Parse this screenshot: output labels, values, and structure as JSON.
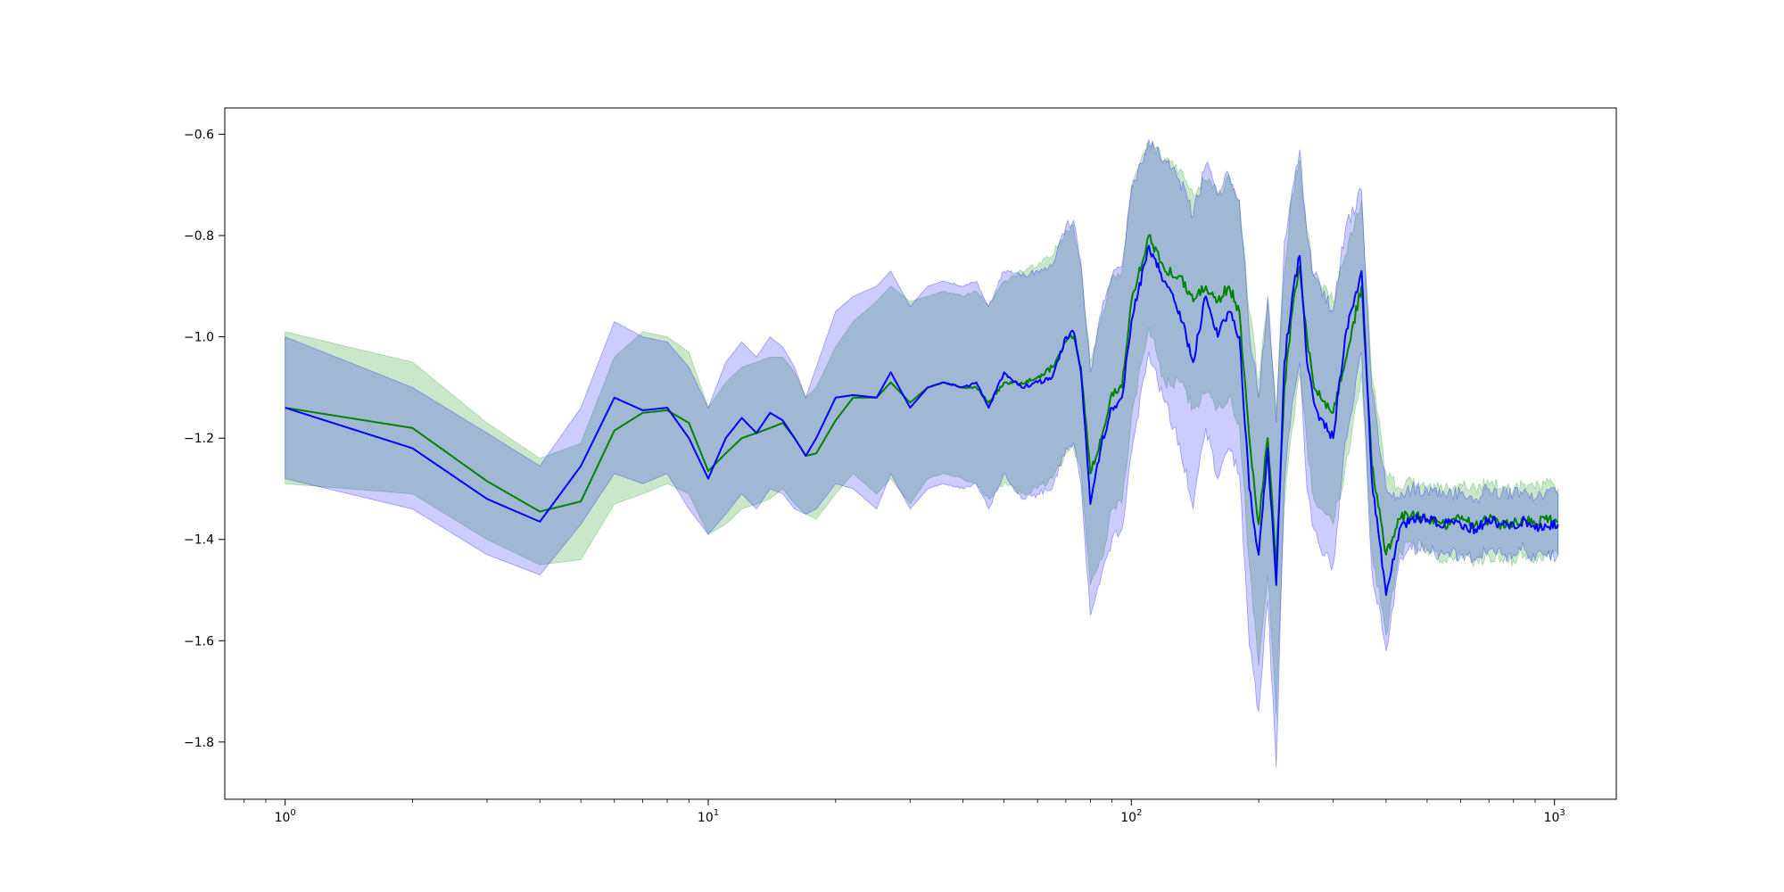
{
  "chart_data": {
    "type": "line",
    "title": "",
    "xlabel": "",
    "ylabel": "",
    "x_scale": "log",
    "xlim": [
      0.72,
      1400
    ],
    "ylim": [
      -1.913,
      -0.548
    ],
    "grid": false,
    "legend": "none",
    "x_ticks": [
      {
        "value": 1,
        "base": "10",
        "exp": "0"
      },
      {
        "value": 10,
        "base": "10",
        "exp": "1"
      },
      {
        "value": 100,
        "base": "10",
        "exp": "2"
      },
      {
        "value": 1000,
        "base": "10",
        "exp": "3"
      }
    ],
    "y_ticks": [
      {
        "value": -0.6,
        "label": "−0.6"
      },
      {
        "value": -0.8,
        "label": "−0.8"
      },
      {
        "value": -1.0,
        "label": "−1.0"
      },
      {
        "value": -1.2,
        "label": "−1.2"
      },
      {
        "value": -1.4,
        "label": "−1.4"
      },
      {
        "value": -1.6,
        "label": "−1.6"
      },
      {
        "value": -1.8,
        "label": "−1.8"
      }
    ],
    "series": [
      {
        "color": "#008000",
        "band_color": "#2ca02c",
        "band_opacity": 0.25,
        "x": [
          1,
          2,
          3,
          4,
          5,
          6,
          7,
          8,
          9,
          10,
          11,
          12,
          13,
          14,
          15,
          16,
          17,
          18,
          20,
          22,
          25,
          27,
          30,
          33,
          36,
          40,
          43,
          46,
          50,
          55,
          60,
          65,
          70,
          73,
          76,
          80,
          85,
          90,
          95,
          100,
          110,
          120,
          130,
          140,
          150,
          160,
          170,
          180,
          190,
          200,
          210,
          220,
          230,
          240,
          250,
          260,
          270,
          280,
          300,
          320,
          350,
          370,
          400,
          430,
          460,
          500,
          550,
          600,
          650,
          700,
          750,
          800,
          850,
          900,
          950,
          1020
        ],
        "y": [
          -1.14,
          -1.18,
          -1.285,
          -1.345,
          -1.325,
          -1.185,
          -1.15,
          -1.145,
          -1.17,
          -1.265,
          -1.23,
          -1.2,
          -1.19,
          -1.18,
          -1.17,
          -1.2,
          -1.235,
          -1.23,
          -1.165,
          -1.12,
          -1.12,
          -1.09,
          -1.13,
          -1.1,
          -1.09,
          -1.1,
          -1.1,
          -1.13,
          -1.09,
          -1.09,
          -1.08,
          -1.06,
          -1.01,
          -1.0,
          -1.06,
          -1.27,
          -1.2,
          -1.11,
          -1.1,
          -0.93,
          -0.8,
          -0.87,
          -0.88,
          -0.93,
          -0.9,
          -0.93,
          -0.9,
          -0.95,
          -1.2,
          -1.37,
          -1.2,
          -1.45,
          -1.1,
          -0.95,
          -0.86,
          -1.0,
          -1.1,
          -1.12,
          -1.15,
          -1.05,
          -0.9,
          -1.25,
          -1.43,
          -1.36,
          -1.35,
          -1.36,
          -1.37,
          -1.36,
          -1.37,
          -1.36,
          -1.37,
          -1.37,
          -1.36,
          -1.37,
          -1.36,
          -1.365
        ],
        "upper": [
          -0.99,
          -1.05,
          -1.17,
          -1.24,
          -1.21,
          -1.04,
          -0.99,
          -1.0,
          -1.03,
          -1.14,
          -1.09,
          -1.06,
          -1.05,
          -1.04,
          -1.04,
          -1.07,
          -1.12,
          -1.1,
          -1.02,
          -0.97,
          -0.93,
          -0.9,
          -0.93,
          -0.92,
          -0.91,
          -0.92,
          -0.91,
          -0.94,
          -0.89,
          -0.87,
          -0.86,
          -0.84,
          -0.79,
          -0.78,
          -0.86,
          -1.05,
          -0.96,
          -0.88,
          -0.87,
          -0.7,
          -0.62,
          -0.65,
          -0.67,
          -0.72,
          -0.69,
          -0.72,
          -0.68,
          -0.73,
          -0.95,
          -1.09,
          -0.93,
          -1.15,
          -0.87,
          -0.72,
          -0.65,
          -0.79,
          -0.88,
          -0.9,
          -0.93,
          -0.84,
          -0.73,
          -1.08,
          -1.27,
          -1.3,
          -1.29,
          -1.3,
          -1.3,
          -1.29,
          -1.3,
          -1.29,
          -1.3,
          -1.3,
          -1.29,
          -1.3,
          -1.29,
          -1.3
        ],
        "lower": [
          -1.29,
          -1.31,
          -1.4,
          -1.45,
          -1.44,
          -1.33,
          -1.31,
          -1.29,
          -1.31,
          -1.39,
          -1.37,
          -1.34,
          -1.33,
          -1.32,
          -1.3,
          -1.33,
          -1.35,
          -1.36,
          -1.31,
          -1.27,
          -1.31,
          -1.28,
          -1.33,
          -1.28,
          -1.27,
          -1.28,
          -1.29,
          -1.32,
          -1.29,
          -1.31,
          -1.3,
          -1.28,
          -1.23,
          -1.22,
          -1.26,
          -1.49,
          -1.44,
          -1.34,
          -1.33,
          -1.16,
          -0.98,
          -1.09,
          -1.09,
          -1.14,
          -1.11,
          -1.14,
          -1.12,
          -1.17,
          -1.45,
          -1.65,
          -1.47,
          -1.75,
          -1.33,
          -1.18,
          -1.07,
          -1.21,
          -1.32,
          -1.34,
          -1.37,
          -1.26,
          -1.07,
          -1.42,
          -1.59,
          -1.42,
          -1.41,
          -1.42,
          -1.44,
          -1.43,
          -1.44,
          -1.43,
          -1.44,
          -1.44,
          -1.43,
          -1.44,
          -1.43,
          -1.43
        ]
      },
      {
        "color": "#0000ff",
        "band_color": "#0000ff",
        "band_opacity": 0.2,
        "x": [
          1,
          2,
          3,
          4,
          5,
          6,
          7,
          8,
          9,
          10,
          11,
          12,
          13,
          14,
          15,
          16,
          17,
          18,
          20,
          22,
          25,
          27,
          30,
          33,
          36,
          40,
          43,
          46,
          50,
          55,
          60,
          65,
          70,
          73,
          76,
          80,
          85,
          90,
          95,
          100,
          110,
          120,
          130,
          140,
          150,
          160,
          170,
          180,
          190,
          200,
          210,
          220,
          230,
          240,
          250,
          260,
          270,
          280,
          300,
          320,
          350,
          370,
          400,
          430,
          460,
          500,
          550,
          600,
          650,
          700,
          750,
          800,
          850,
          900,
          950,
          1020
        ],
        "y": [
          -1.14,
          -1.22,
          -1.32,
          -1.365,
          -1.255,
          -1.12,
          -1.145,
          -1.14,
          -1.2,
          -1.28,
          -1.2,
          -1.16,
          -1.19,
          -1.15,
          -1.165,
          -1.2,
          -1.235,
          -1.2,
          -1.12,
          -1.115,
          -1.12,
          -1.07,
          -1.14,
          -1.1,
          -1.09,
          -1.1,
          -1.09,
          -1.14,
          -1.07,
          -1.1,
          -1.09,
          -1.08,
          -1.0,
          -0.99,
          -1.07,
          -1.33,
          -1.21,
          -1.14,
          -1.12,
          -0.97,
          -0.82,
          -0.89,
          -0.95,
          -1.05,
          -0.92,
          -1.0,
          -0.95,
          -1.0,
          -1.3,
          -1.43,
          -1.22,
          -1.49,
          -1.05,
          -0.92,
          -0.84,
          -1.05,
          -1.13,
          -1.16,
          -1.2,
          -1.0,
          -0.87,
          -1.28,
          -1.51,
          -1.38,
          -1.36,
          -1.36,
          -1.37,
          -1.37,
          -1.38,
          -1.36,
          -1.37,
          -1.37,
          -1.36,
          -1.38,
          -1.37,
          -1.37
        ],
        "upper": [
          -1.0,
          -1.1,
          -1.19,
          -1.255,
          -1.14,
          -0.97,
          -1.0,
          -1.01,
          -1.06,
          -1.14,
          -1.05,
          -1.01,
          -1.04,
          -1.0,
          -1.02,
          -1.06,
          -1.12,
          -1.06,
          -0.95,
          -0.92,
          -0.9,
          -0.87,
          -0.94,
          -0.9,
          -0.89,
          -0.9,
          -0.89,
          -0.94,
          -0.87,
          -0.88,
          -0.87,
          -0.86,
          -0.78,
          -0.77,
          -0.85,
          -1.07,
          -0.95,
          -0.88,
          -0.86,
          -0.71,
          -0.61,
          -0.65,
          -0.69,
          -0.76,
          -0.66,
          -0.72,
          -0.68,
          -0.73,
          -0.99,
          -1.12,
          -0.92,
          -1.17,
          -0.81,
          -0.71,
          -0.63,
          -0.8,
          -0.88,
          -0.9,
          -0.95,
          -0.79,
          -0.71,
          -1.1,
          -1.3,
          -1.32,
          -1.3,
          -1.3,
          -1.31,
          -1.31,
          -1.32,
          -1.3,
          -1.31,
          -1.31,
          -1.3,
          -1.32,
          -1.31,
          -1.31
        ],
        "lower": [
          -1.28,
          -1.34,
          -1.43,
          -1.47,
          -1.37,
          -1.27,
          -1.29,
          -1.27,
          -1.34,
          -1.39,
          -1.35,
          -1.31,
          -1.34,
          -1.3,
          -1.31,
          -1.34,
          -1.35,
          -1.34,
          -1.29,
          -1.3,
          -1.34,
          -1.27,
          -1.34,
          -1.3,
          -1.29,
          -1.3,
          -1.29,
          -1.34,
          -1.27,
          -1.32,
          -1.31,
          -1.3,
          -1.22,
          -1.21,
          -1.29,
          -1.55,
          -1.47,
          -1.4,
          -1.38,
          -1.23,
          -1.03,
          -1.13,
          -1.21,
          -1.34,
          -1.18,
          -1.28,
          -1.22,
          -1.27,
          -1.61,
          -1.74,
          -1.52,
          -1.85,
          -1.29,
          -1.13,
          -1.05,
          -1.3,
          -1.38,
          -1.42,
          -1.45,
          -1.21,
          -1.03,
          -1.46,
          -1.62,
          -1.44,
          -1.42,
          -1.42,
          -1.43,
          -1.43,
          -1.44,
          -1.42,
          -1.43,
          -1.43,
          -1.42,
          -1.44,
          -1.43,
          -1.43
        ]
      }
    ]
  }
}
